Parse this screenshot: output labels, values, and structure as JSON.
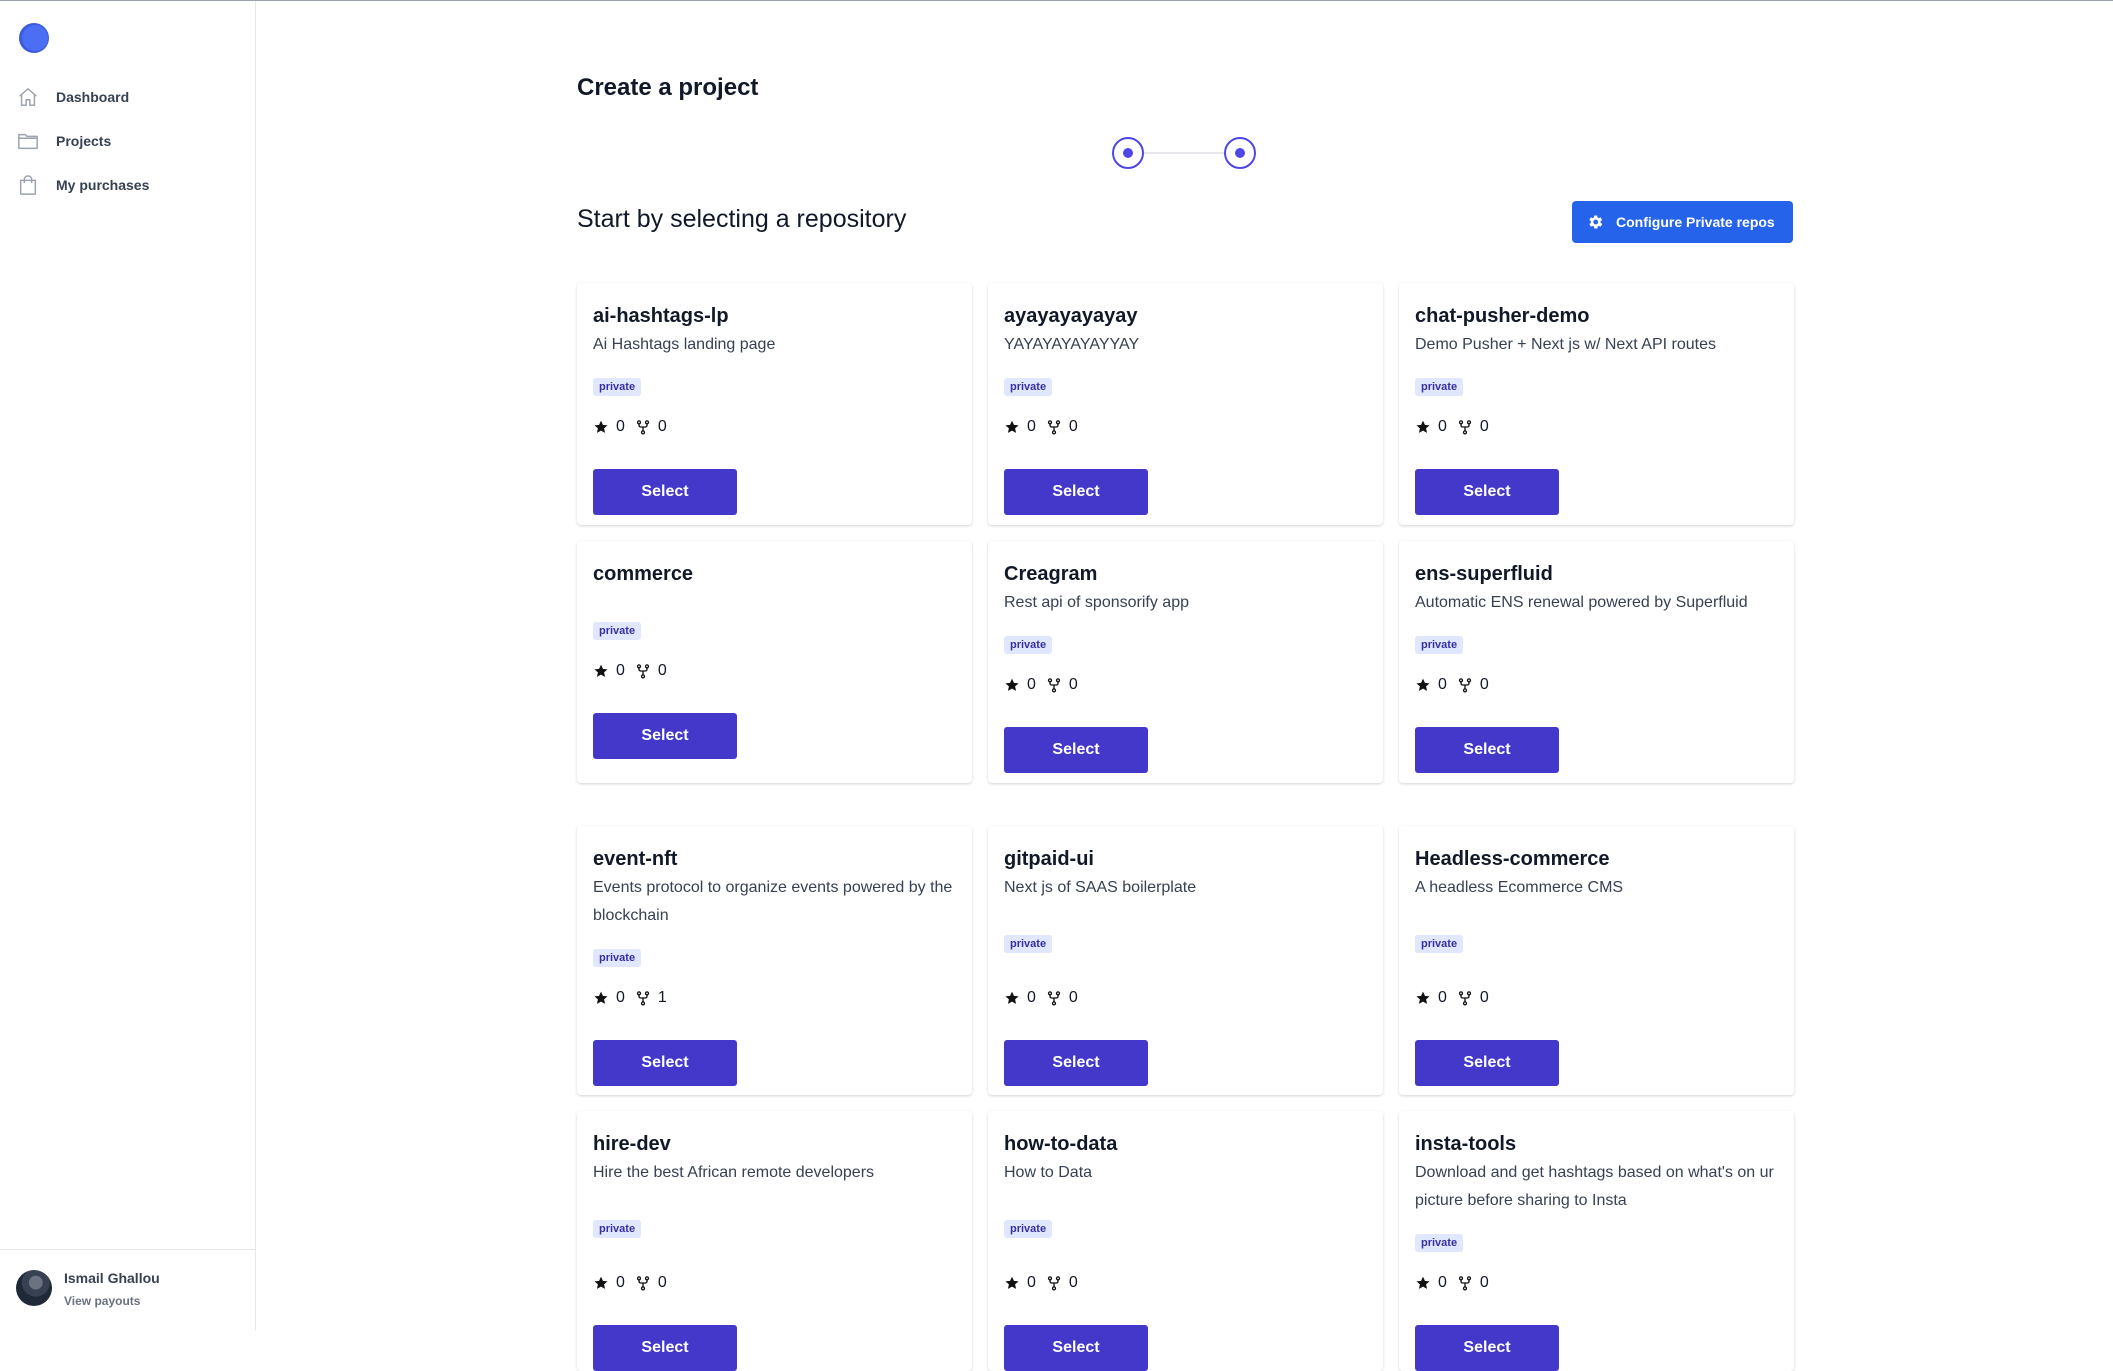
{
  "sidebar": {
    "items": [
      {
        "label": "Dashboard",
        "icon": "home-icon"
      },
      {
        "label": "Projects",
        "icon": "folder-icon"
      },
      {
        "label": "My purchases",
        "icon": "shopping-bag-icon"
      }
    ],
    "user": {
      "name": "Ismail Ghallou",
      "link": "View payouts"
    }
  },
  "main": {
    "title": "Create a project",
    "subtitle": "Start by selecting a repository",
    "config_button": "Configure Private repos",
    "select_label": "Select",
    "repos": [
      {
        "name": "ai-hashtags-lp",
        "desc": "Ai Hashtags landing page",
        "badge": "private",
        "stars": "0",
        "forks": "0"
      },
      {
        "name": "ayayayayayay",
        "desc": "YAYAYAYAYAYYAY",
        "badge": "private",
        "stars": "0",
        "forks": "0"
      },
      {
        "name": "chat-pusher-demo",
        "desc": "Demo Pusher + Next js w/ Next API routes",
        "badge": "private",
        "stars": "0",
        "forks": "0"
      },
      {
        "name": "commerce",
        "desc": "",
        "badge": "private",
        "stars": "0",
        "forks": "0"
      },
      {
        "name": "Creagram",
        "desc": "Rest api of sponsorify app",
        "badge": "private",
        "stars": "0",
        "forks": "0"
      },
      {
        "name": "ens-superfluid",
        "desc": "Automatic ENS renewal powered by Superfluid",
        "badge": "private",
        "stars": "0",
        "forks": "0"
      },
      {
        "name": "event-nft",
        "desc": "Events protocol to organize events powered by the blockchain",
        "badge": "private",
        "stars": "0",
        "forks": "1"
      },
      {
        "name": "gitpaid-ui",
        "desc": "Next js of SAAS boilerplate",
        "badge": "private",
        "stars": "0",
        "forks": "0"
      },
      {
        "name": "Headless-commerce",
        "desc": "A headless Ecommerce CMS",
        "badge": "private",
        "stars": "0",
        "forks": "0"
      },
      {
        "name": "hire-dev",
        "desc": "Hire the best African remote developers",
        "badge": "private",
        "stars": "0",
        "forks": "0"
      },
      {
        "name": "how-to-data",
        "desc": "How to Data",
        "badge": "private",
        "stars": "0",
        "forks": "0"
      },
      {
        "name": "insta-tools",
        "desc": "Download and get hashtags based on what's on ur picture before sharing to Insta",
        "badge": "private",
        "stars": "0",
        "forks": "0"
      }
    ]
  },
  "colors": {
    "primary": "#4338ca",
    "config": "#2563eb",
    "badge_bg": "#e0e7ff"
  }
}
